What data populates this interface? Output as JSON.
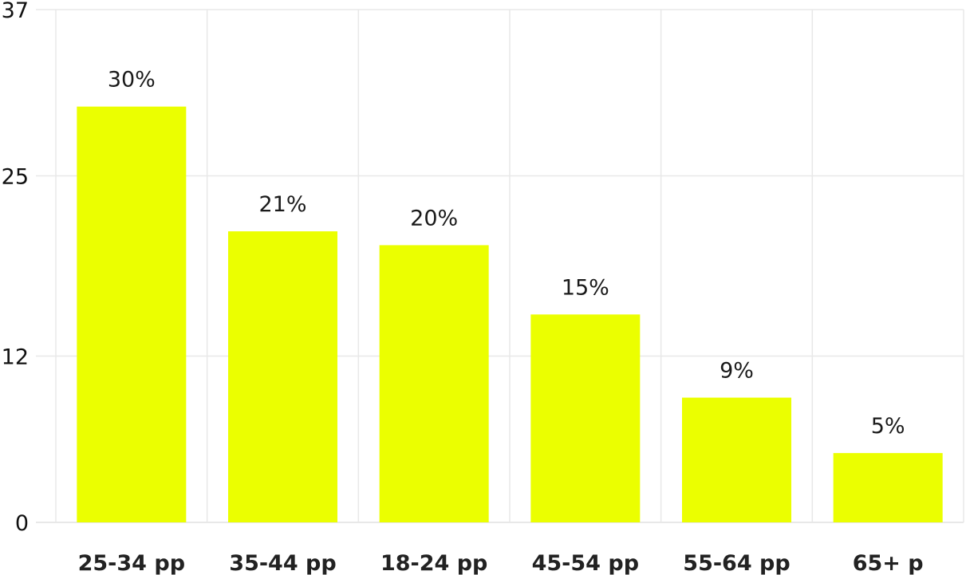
{
  "chart_data": {
    "type": "bar",
    "categories": [
      "25-34 pp",
      "35-44 pp",
      "18-24 pp",
      "45-54 pp",
      "55-64 pp",
      "65+ p"
    ],
    "values": [
      30,
      21,
      20,
      15,
      9,
      5
    ],
    "data_labels": [
      "30%",
      "21%",
      "20%",
      "15%",
      "9%",
      "5%"
    ],
    "y_ticks": [
      0,
      12,
      25,
      37
    ],
    "ylim": [
      0,
      37
    ],
    "title": "",
    "xlabel": "",
    "ylabel": "",
    "grid": true,
    "legend": "none",
    "bar_color": "#ebff00"
  }
}
